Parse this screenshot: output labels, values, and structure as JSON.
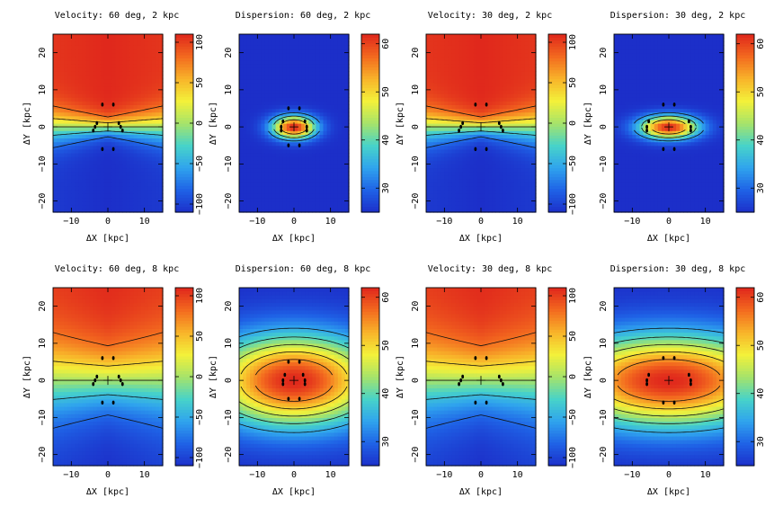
{
  "figure": {
    "description_free": true
  },
  "colorbar_stops": [
    "#1c2fc9",
    "#1f62e6",
    "#2fa3ee",
    "#47d3c9",
    "#a6e36a",
    "#f3f13a",
    "#f8b42a",
    "#f36a1f",
    "#e0281c"
  ],
  "chart_data": [
    {
      "type": "heatmap",
      "title": "Velocity: 60 deg, 2 kpc",
      "quantity": "velocity",
      "inclination_deg": 60,
      "scale_kpc": 2,
      "xlabel": "ΔX [kpc]",
      "ylabel": "ΔY [kpc]",
      "xlim": [
        -15,
        15
      ],
      "ylim": [
        -23,
        25
      ],
      "xticks": [
        -10,
        0,
        10
      ],
      "yticks": [
        -20,
        -10,
        0,
        10,
        20
      ],
      "colorbar": {
        "range": [
          -110,
          110
        ],
        "ticks": [
          -100,
          -50,
          0,
          50,
          100
        ]
      },
      "contour_levels": [
        -80,
        -40,
        0,
        40,
        80
      ],
      "bar_points": [
        [
          -4,
          -1
        ],
        [
          -3.5,
          0
        ],
        [
          -3,
          1
        ],
        [
          3,
          1
        ],
        [
          3.5,
          0
        ],
        [
          4,
          -1
        ],
        [
          -1.5,
          6
        ],
        [
          1.5,
          6
        ],
        [
          -1.5,
          -6
        ],
        [
          1.5,
          -6
        ]
      ]
    },
    {
      "type": "heatmap",
      "title": "Dispersion: 60 deg, 2 kpc",
      "quantity": "dispersion",
      "inclination_deg": 60,
      "scale_kpc": 2,
      "xlabel": "ΔX [kpc]",
      "ylabel": "ΔY [kpc]",
      "xlim": [
        -15,
        15
      ],
      "ylim": [
        -23,
        25
      ],
      "xticks": [
        -10,
        0,
        10
      ],
      "yticks": [
        -20,
        -10,
        0,
        10,
        20
      ],
      "colorbar": {
        "range": [
          25,
          62
        ],
        "ticks": [
          30,
          40,
          50,
          60
        ]
      },
      "contour_levels": [
        33,
        40,
        50
      ],
      "bar_points": [
        [
          -3.5,
          -1
        ],
        [
          -3.5,
          0
        ],
        [
          -3,
          1.5
        ],
        [
          3,
          1.5
        ],
        [
          3.5,
          0
        ],
        [
          3.5,
          -1
        ],
        [
          -1.5,
          5
        ],
        [
          1.5,
          5
        ],
        [
          -1.5,
          -5
        ],
        [
          1.5,
          -5
        ]
      ]
    },
    {
      "type": "heatmap",
      "title": "Velocity: 30 deg, 2 kpc",
      "quantity": "velocity",
      "inclination_deg": 30,
      "scale_kpc": 2,
      "xlabel": "ΔX [kpc]",
      "ylabel": "ΔY [kpc]",
      "xlim": [
        -15,
        15
      ],
      "ylim": [
        -23,
        25
      ],
      "xticks": [
        -10,
        0,
        10
      ],
      "yticks": [
        -20,
        -10,
        0,
        10,
        20
      ],
      "colorbar": {
        "range": [
          -110,
          110
        ],
        "ticks": [
          -100,
          -50,
          0,
          50,
          100
        ]
      },
      "contour_levels": [
        -80,
        -40,
        0,
        40,
        80
      ],
      "bar_points": [
        [
          -6,
          -1
        ],
        [
          -5.5,
          0
        ],
        [
          -5,
          1
        ],
        [
          5,
          1
        ],
        [
          5.5,
          0
        ],
        [
          6,
          -1
        ],
        [
          -1.5,
          6
        ],
        [
          1.5,
          6
        ],
        [
          -1.5,
          -6
        ],
        [
          1.5,
          -6
        ]
      ]
    },
    {
      "type": "heatmap",
      "title": "Dispersion: 30 deg, 2 kpc",
      "quantity": "dispersion",
      "inclination_deg": 30,
      "scale_kpc": 2,
      "xlabel": "ΔX [kpc]",
      "ylabel": "ΔY [kpc]",
      "xlim": [
        -15,
        15
      ],
      "ylim": [
        -23,
        25
      ],
      "xticks": [
        -10,
        0,
        10
      ],
      "yticks": [
        -20,
        -10,
        0,
        10,
        20
      ],
      "colorbar": {
        "range": [
          25,
          62
        ],
        "ticks": [
          30,
          40,
          50,
          60
        ]
      },
      "contour_levels": [
        33,
        40,
        50
      ],
      "bar_points": [
        [
          -6,
          -1
        ],
        [
          -6,
          0
        ],
        [
          -5.5,
          1.5
        ],
        [
          5.5,
          1.5
        ],
        [
          6,
          0
        ],
        [
          6,
          -1
        ],
        [
          -1.5,
          6
        ],
        [
          1.5,
          6
        ],
        [
          -1.5,
          -6
        ],
        [
          1.5,
          -6
        ]
      ]
    },
    {
      "type": "heatmap",
      "title": "Velocity: 60 deg, 8 kpc",
      "quantity": "velocity",
      "inclination_deg": 60,
      "scale_kpc": 8,
      "xlabel": "ΔX [kpc]",
      "ylabel": "ΔY [kpc]",
      "xlim": [
        -15,
        15
      ],
      "ylim": [
        -23,
        25
      ],
      "xticks": [
        -10,
        0,
        10
      ],
      "yticks": [
        -20,
        -10,
        0,
        10,
        20
      ],
      "colorbar": {
        "range": [
          -110,
          110
        ],
        "ticks": [
          -100,
          -50,
          0,
          50,
          100
        ]
      },
      "contour_levels": [
        -80,
        -40,
        0,
        40,
        80
      ],
      "bar_points": [
        [
          -4,
          -1
        ],
        [
          -3.5,
          0
        ],
        [
          -3,
          1
        ],
        [
          3,
          1
        ],
        [
          3.5,
          0
        ],
        [
          4,
          -1
        ],
        [
          -1.5,
          6
        ],
        [
          1.5,
          6
        ],
        [
          -1.5,
          -6
        ],
        [
          1.5,
          -6
        ]
      ]
    },
    {
      "type": "heatmap",
      "title": "Dispersion: 60 deg, 8 kpc",
      "quantity": "dispersion",
      "inclination_deg": 60,
      "scale_kpc": 8,
      "xlabel": "ΔX [kpc]",
      "ylabel": "ΔY [kpc]",
      "xlim": [
        -15,
        15
      ],
      "ylim": [
        -23,
        25
      ],
      "xticks": [
        -10,
        0,
        10
      ],
      "yticks": [
        -20,
        -10,
        0,
        10,
        20
      ],
      "colorbar": {
        "range": [
          25,
          62
        ],
        "ticks": [
          30,
          40,
          50,
          60
        ]
      },
      "contour_levels": [
        35,
        40,
        45,
        50,
        55
      ],
      "bar_points": [
        [
          -3,
          -1
        ],
        [
          -3,
          0
        ],
        [
          -2.5,
          1.5
        ],
        [
          2.5,
          1.5
        ],
        [
          3,
          0
        ],
        [
          3,
          -1
        ],
        [
          -1.5,
          5
        ],
        [
          1.5,
          5
        ],
        [
          -1.5,
          -5
        ],
        [
          1.5,
          -5
        ]
      ]
    },
    {
      "type": "heatmap",
      "title": "Velocity: 30 deg, 8 kpc",
      "quantity": "velocity",
      "inclination_deg": 30,
      "scale_kpc": 8,
      "xlabel": "ΔX [kpc]",
      "ylabel": "ΔY [kpc]",
      "xlim": [
        -15,
        15
      ],
      "ylim": [
        -23,
        25
      ],
      "xticks": [
        -10,
        0,
        10
      ],
      "yticks": [
        -20,
        -10,
        0,
        10,
        20
      ],
      "colorbar": {
        "range": [
          -110,
          110
        ],
        "ticks": [
          -100,
          -50,
          0,
          50,
          100
        ]
      },
      "contour_levels": [
        -80,
        -40,
        0,
        40,
        80
      ],
      "bar_points": [
        [
          -6,
          -1
        ],
        [
          -5.5,
          0
        ],
        [
          -5,
          1
        ],
        [
          5,
          1
        ],
        [
          5.5,
          0
        ],
        [
          6,
          -1
        ],
        [
          -1.5,
          6
        ],
        [
          1.5,
          6
        ],
        [
          -1.5,
          -6
        ],
        [
          1.5,
          -6
        ]
      ]
    },
    {
      "type": "heatmap",
      "title": "Dispersion: 30 deg, 8 kpc",
      "quantity": "dispersion",
      "inclination_deg": 30,
      "scale_kpc": 8,
      "xlabel": "ΔX [kpc]",
      "ylabel": "ΔY [kpc]",
      "xlim": [
        -15,
        15
      ],
      "ylim": [
        -23,
        25
      ],
      "xticks": [
        -10,
        0,
        10
      ],
      "yticks": [
        -20,
        -10,
        0,
        10,
        20
      ],
      "colorbar": {
        "range": [
          25,
          62
        ],
        "ticks": [
          30,
          40,
          50,
          60
        ]
      },
      "contour_levels": [
        35,
        40,
        45,
        50,
        55
      ],
      "bar_points": [
        [
          -6,
          -1
        ],
        [
          -6,
          0
        ],
        [
          -5.5,
          1.5
        ],
        [
          5.5,
          1.5
        ],
        [
          6,
          0
        ],
        [
          6,
          -1
        ],
        [
          -1.5,
          6
        ],
        [
          1.5,
          6
        ],
        [
          -1.5,
          -6
        ],
        [
          1.5,
          -6
        ]
      ]
    }
  ]
}
